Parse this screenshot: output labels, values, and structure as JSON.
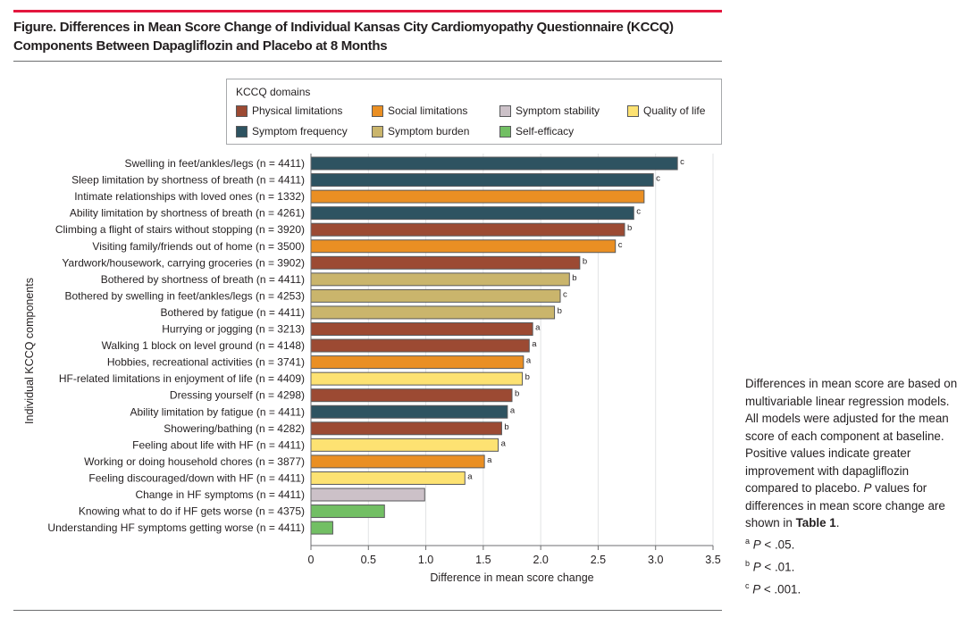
{
  "figure": {
    "title_line1": "Figure. Differences in Mean Score Change of Individual Kansas City Cardiomyopathy Questionnaire (KCCQ)",
    "title_line2": "Components Between Dapagliflozin and Placebo at 8 Months"
  },
  "legend": {
    "title": "KCCQ domains",
    "items": [
      {
        "label": "Physical limitations",
        "color": "#9c4a33"
      },
      {
        "label": "Social limitations",
        "color": "#ea8f23"
      },
      {
        "label": "Symptom stability",
        "color": "#ccc1c8"
      },
      {
        "label": "Quality of life",
        "color": "#fde272"
      },
      {
        "label": "Symptom frequency",
        "color": "#2e5361"
      },
      {
        "label": "Symptom burden",
        "color": "#cab56c"
      },
      {
        "label": "Self-efficacy",
        "color": "#72bf64"
      }
    ]
  },
  "note": {
    "text_a": "Differences in mean score are based on multivariable linear regression models. All models were adjusted for the mean score of each component at baseline. Positive values indicate greater improvement with dapagliflozin compared to placebo. ",
    "p_italic": "P",
    "text_b": " values for differences in mean score change are shown in ",
    "table_ref": "Table 1",
    "text_c": ".",
    "footnotes": [
      {
        "mark": "a",
        "p": "P",
        "text": " < .05."
      },
      {
        "mark": "b",
        "p": "P",
        "text": " < .01."
      },
      {
        "mark": "c",
        "p": "P",
        "text": " < .001."
      }
    ]
  },
  "chart_data": {
    "type": "bar",
    "orientation": "horizontal",
    "title": "Differences in Mean Score Change of Individual KCCQ Components Between Dapagliflozin and Placebo at 8 Months",
    "xlabel": "Difference in mean score change",
    "ylabel": "Individual KCCQ components",
    "xlim": [
      0,
      3.5
    ],
    "xticks": [
      0,
      0.5,
      1.0,
      1.5,
      2.0,
      2.5,
      3.0,
      3.5
    ],
    "xtick_labels": [
      "0",
      "0.5",
      "1.0",
      "1.5",
      "2.0",
      "2.5",
      "3.0",
      "3.5"
    ],
    "grid": "vertical",
    "legend_position": "top",
    "domain_colors": {
      "Physical limitations": "#9c4a33",
      "Social limitations": "#ea8f23",
      "Symptom stability": "#ccc1c8",
      "Quality of life": "#fde272",
      "Symptom frequency": "#2e5361",
      "Symptom burden": "#cab56c",
      "Self-efficacy": "#72bf64"
    },
    "bars": [
      {
        "label": "Swelling in feet/ankles/legs (n = 4411)",
        "domain": "Symptom frequency",
        "value": 3.19,
        "sig": "c"
      },
      {
        "label": "Sleep limitation by shortness of breath (n = 4411)",
        "domain": "Symptom frequency",
        "value": 2.98,
        "sig": "c"
      },
      {
        "label": "Intimate relationships with loved ones (n = 1332)",
        "domain": "Social limitations",
        "value": 2.9,
        "sig": ""
      },
      {
        "label": "Ability limitation by shortness of breath (n = 4261)",
        "domain": "Symptom frequency",
        "value": 2.81,
        "sig": "c"
      },
      {
        "label": "Climbing a flight of stairs without stopping (n = 3920)",
        "domain": "Physical limitations",
        "value": 2.73,
        "sig": "b"
      },
      {
        "label": "Visiting family/friends out of home (n = 3500)",
        "domain": "Social limitations",
        "value": 2.65,
        "sig": "c"
      },
      {
        "label": "Yardwork/housework, carrying groceries (n = 3902)",
        "domain": "Physical limitations",
        "value": 2.34,
        "sig": "b"
      },
      {
        "label": "Bothered by shortness of breath (n = 4411)",
        "domain": "Symptom burden",
        "value": 2.25,
        "sig": "b"
      },
      {
        "label": "Bothered by swelling in feet/ankles/legs (n = 4253)",
        "domain": "Symptom burden",
        "value": 2.17,
        "sig": "c"
      },
      {
        "label": "Bothered by fatigue (n = 4411)",
        "domain": "Symptom burden",
        "value": 2.12,
        "sig": "b"
      },
      {
        "label": "Hurrying or jogging (n = 3213)",
        "domain": "Physical limitations",
        "value": 1.93,
        "sig": "a"
      },
      {
        "label": "Walking 1 block on level ground (n = 4148)",
        "domain": "Physical limitations",
        "value": 1.9,
        "sig": "a"
      },
      {
        "label": "Hobbies, recreational activities (n = 3741)",
        "domain": "Social limitations",
        "value": 1.85,
        "sig": "a"
      },
      {
        "label": "HF-related limitations in enjoyment of life (n = 4409)",
        "domain": "Quality of life",
        "value": 1.84,
        "sig": "b"
      },
      {
        "label": "Dressing yourself (n = 4298)",
        "domain": "Physical limitations",
        "value": 1.75,
        "sig": "b"
      },
      {
        "label": "Ability limitation by fatigue (n = 4411)",
        "domain": "Symptom frequency",
        "value": 1.71,
        "sig": "a"
      },
      {
        "label": "Showering/bathing (n = 4282)",
        "domain": "Physical limitations",
        "value": 1.66,
        "sig": "b"
      },
      {
        "label": "Feeling about life with HF (n = 4411)",
        "domain": "Quality of life",
        "value": 1.63,
        "sig": "a"
      },
      {
        "label": "Working or doing household chores (n = 3877)",
        "domain": "Social limitations",
        "value": 1.51,
        "sig": "a"
      },
      {
        "label": "Feeling discouraged/down with HF (n = 4411)",
        "domain": "Quality of life",
        "value": 1.34,
        "sig": "a"
      },
      {
        "label": "Change in HF symptoms (n = 4411)",
        "domain": "Symptom stability",
        "value": 0.99,
        "sig": ""
      },
      {
        "label": "Knowing what to do if HF gets worse (n = 4375)",
        "domain": "Self-efficacy",
        "value": 0.64,
        "sig": ""
      },
      {
        "label": "Understanding HF symptoms getting worse (n = 4411)",
        "domain": "Self-efficacy",
        "value": 0.19,
        "sig": ""
      }
    ]
  }
}
